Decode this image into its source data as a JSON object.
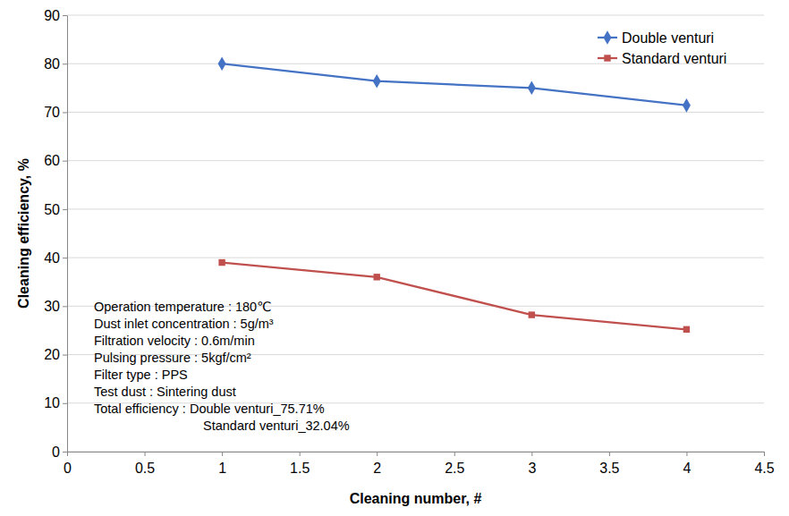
{
  "chart_data": {
    "type": "line",
    "x_label": "Cleaning number, #",
    "y_label": "Cleaning efficiency, %",
    "x": [
      1,
      2,
      3,
      4
    ],
    "series": [
      {
        "name": "Double venturi",
        "color": "#4472c4",
        "marker": "diamond",
        "values": [
          80,
          76.4,
          75,
          71.4
        ]
      },
      {
        "name": "Standard venturi",
        "color": "#c0504d",
        "marker": "square",
        "values": [
          39,
          36,
          28.2,
          25.2
        ]
      }
    ],
    "xlim": [
      0,
      4.5
    ],
    "xticks": [
      0,
      0.5,
      1,
      1.5,
      2,
      2.5,
      3,
      3.5,
      4,
      4.5
    ],
    "ylim": [
      0,
      90
    ],
    "yticks": [
      0,
      10,
      20,
      30,
      40,
      50,
      60,
      70,
      80,
      90
    ],
    "grid": true,
    "legend": "top-right",
    "annotations": [
      "Operation temperature : 180℃",
      "Dust inlet concentration : 5g/m³",
      "Filtration velocity : 0.6m/min",
      "Pulsing pressure : 5kgf/cm²",
      "Filter type : PPS",
      "Test dust : Sintering dust",
      "Total efficiency : Double venturi_75.71%",
      "Standard venturi_32.04%"
    ]
  }
}
